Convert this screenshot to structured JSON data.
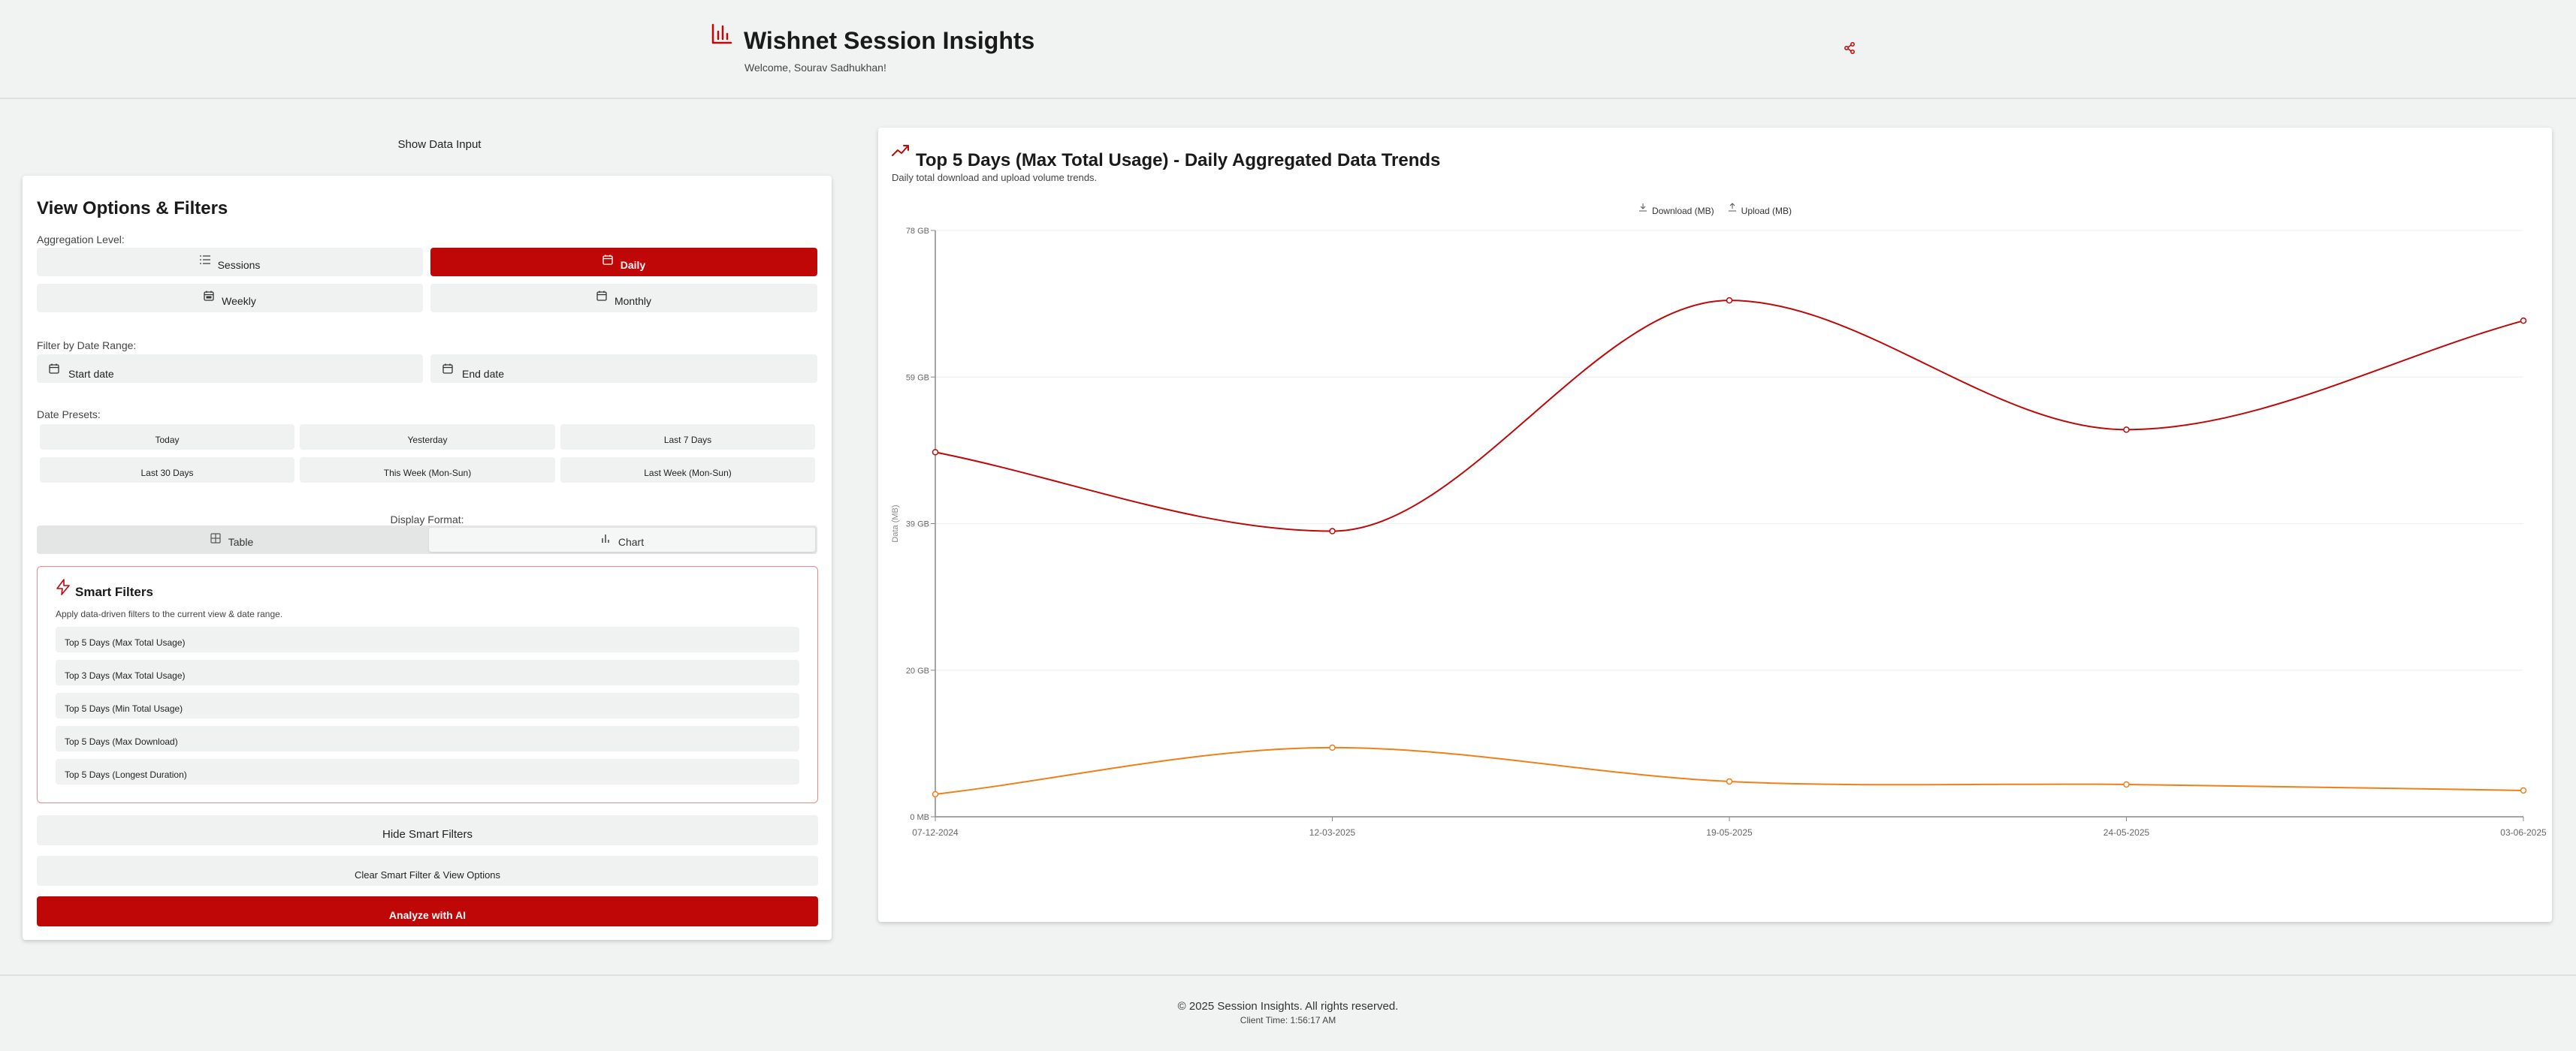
{
  "header": {
    "title": "Wishnet Session Insights",
    "welcome": "Welcome, Sourav Sadhukhan!",
    "brand_color": "#c00707"
  },
  "show_data_label": "Show Data Input",
  "filters": {
    "title": "View Options & Filters",
    "aggregation_label": "Aggregation Level:",
    "aggregation": [
      {
        "label": "Sessions",
        "icon": "list-icon",
        "active": false
      },
      {
        "label": "Daily",
        "icon": "calendar-icon",
        "active": true
      },
      {
        "label": "Weekly",
        "icon": "calendar-week-icon",
        "active": false
      },
      {
        "label": "Monthly",
        "icon": "calendar-icon",
        "active": false
      }
    ],
    "date_range_label": "Filter by Date Range:",
    "start_date": "Start date",
    "end_date": "End date",
    "presets_label": "Date Presets:",
    "presets": [
      "Today",
      "Yesterday",
      "Last 7 Days",
      "Last 30 Days",
      "This Week (Mon-Sun)",
      "Last Week (Mon-Sun)"
    ],
    "display_format_label": "Display Format:",
    "display_format": [
      {
        "label": "Table",
        "icon": "table-icon",
        "active": false
      },
      {
        "label": "Chart",
        "icon": "bar-chart-icon",
        "active": true
      }
    ]
  },
  "smart_filters": {
    "title": "Smart Filters",
    "subtitle": "Apply data-driven filters to the current view & date range.",
    "items": [
      "Top 5 Days (Max Total Usage)",
      "Top 3 Days (Max Total Usage)",
      "Top 5 Days (Min Total Usage)",
      "Top 5 Days (Max Download)",
      "Top 5 Days (Longest Duration)"
    ]
  },
  "actions": {
    "hide_smart": "Hide Smart Filters",
    "clear": "Clear Smart Filter & View Options",
    "analyze": "Analyze with AI"
  },
  "chart_data": {
    "type": "line",
    "title": "Top 5 Days (Max Total Usage) - Daily Aggregated Data Trends",
    "subtitle": "Daily total download and upload volume trends.",
    "xlabel": "",
    "ylabel": "Data (MB)",
    "categories": [
      "07-12-2024",
      "12-03-2025",
      "19-05-2025",
      "24-05-2025",
      "03-06-2025"
    ],
    "y_ticks": [
      "0 MB",
      "20 GB",
      "39 GB",
      "59 GB",
      "78 GB"
    ],
    "ylim": [
      0,
      78
    ],
    "grid": true,
    "legend_position": "top-center",
    "series": [
      {
        "name": "Download (MB)",
        "color": "#c00707",
        "values": [
          48.5,
          38,
          68.7,
          51.5,
          66
        ]
      },
      {
        "name": "Upload (MB)",
        "color": "#f07f1a",
        "values": [
          3,
          9.2,
          4.7,
          4.3,
          3.5
        ]
      }
    ]
  },
  "footer": {
    "copyright": "© 2025 Session Insights. All rights reserved.",
    "client_time": "Client Time: 1:56:17 AM"
  }
}
